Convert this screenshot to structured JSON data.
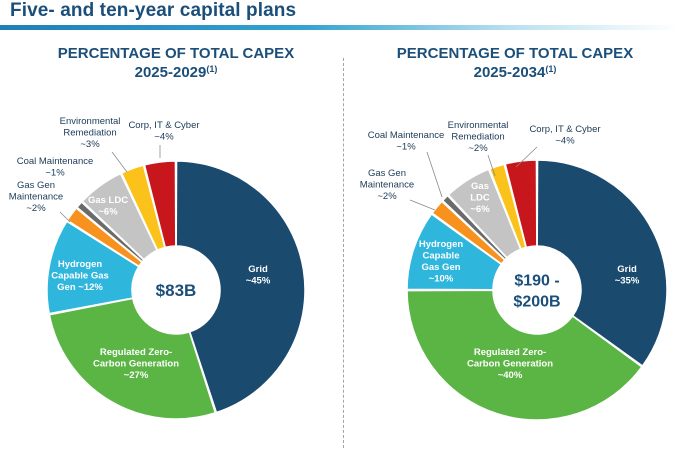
{
  "page": {
    "title": "Five- and ten-year capital plans"
  },
  "colors": {
    "grid": "#1a4a6e",
    "regulated": "#5bb544",
    "hydrogen": "#2fb6dd",
    "gas_gen": "#f7921e",
    "coal": "#6b6b6b",
    "gas_ldc": "#c4c4c4",
    "environmental": "#fbc21b",
    "corp": "#c8161d",
    "title_blue": "#1b4f7a"
  },
  "chart_data": [
    {
      "type": "pie",
      "title": "PERCENTAGE OF TOTAL CAPEX",
      "subtitle": "2025-2029",
      "footnote": "(1)",
      "center_label": [
        "$83B"
      ],
      "slices": [
        {
          "name": "Grid",
          "value_label": "~45%",
          "value": 45,
          "color": "#1a4a6e"
        },
        {
          "name": "Regulated Zero-Carbon Generation",
          "value_label": "~27%",
          "value": 27,
          "color": "#5bb544"
        },
        {
          "name": "Hydrogen Capable Gas Gen",
          "value_label": "~12%",
          "value": 12,
          "color": "#2fb6dd"
        },
        {
          "name": "Gas Gen Maintenance",
          "value_label": "~2%",
          "value": 2,
          "color": "#f7921e"
        },
        {
          "name": "Coal Maintenance",
          "value_label": "~1%",
          "value": 1,
          "color": "#6b6b6b"
        },
        {
          "name": "Gas LDC",
          "value_label": "~6%",
          "value": 6,
          "color": "#c4c4c4"
        },
        {
          "name": "Environmental Remediation",
          "value_label": "~3%",
          "value": 3,
          "color": "#fbc21b"
        },
        {
          "name": "Corp, IT & Cyber",
          "value_label": "~4%",
          "value": 4,
          "color": "#c8161d"
        }
      ],
      "labels": [
        {
          "lines": [
            "Grid",
            "~45%"
          ]
        },
        {
          "lines": [
            "Regulated Zero-",
            "Carbon Generation",
            "~27%"
          ]
        },
        {
          "lines": [
            "Hydrogen",
            "Capable Gas",
            "Gen ~12%"
          ]
        },
        {
          "lines": [
            "Gas Gen",
            "Maintenance",
            "~2%"
          ]
        },
        {
          "lines": [
            "Coal Maintenance",
            "~1%"
          ]
        },
        {
          "lines": [
            "Gas LDC",
            "~6%"
          ]
        },
        {
          "lines": [
            "Environmental",
            "Remediation",
            "~3%"
          ]
        },
        {
          "lines": [
            "Corp, IT & Cyber",
            "~4%"
          ]
        }
      ]
    },
    {
      "type": "pie",
      "title": "PERCENTAGE OF TOTAL CAPEX",
      "subtitle": "2025-2034",
      "footnote": "(1)",
      "center_label": [
        "$190 -",
        "$200B"
      ],
      "slices": [
        {
          "name": "Grid",
          "value_label": "~35%",
          "value": 35,
          "color": "#1a4a6e"
        },
        {
          "name": "Regulated Zero-Carbon Generation",
          "value_label": "~40%",
          "value": 40,
          "color": "#5bb544"
        },
        {
          "name": "Hydrogen Capable Gas Gen",
          "value_label": "~10%",
          "value": 10,
          "color": "#2fb6dd"
        },
        {
          "name": "Gas Gen Maintenance",
          "value_label": "~2%",
          "value": 2,
          "color": "#f7921e"
        },
        {
          "name": "Coal Maintenance",
          "value_label": "~1%",
          "value": 1,
          "color": "#6b6b6b"
        },
        {
          "name": "Gas LDC",
          "value_label": "~6%",
          "value": 6,
          "color": "#c4c4c4"
        },
        {
          "name": "Environmental Remediation",
          "value_label": "~2%",
          "value": 2,
          "color": "#fbc21b"
        },
        {
          "name": "Corp, IT & Cyber",
          "value_label": "~4%",
          "value": 4,
          "color": "#c8161d"
        }
      ],
      "labels": [
        {
          "lines": [
            "Grid",
            "~35%"
          ]
        },
        {
          "lines": [
            "Regulated Zero-",
            "Carbon Generation",
            "~40%"
          ]
        },
        {
          "lines": [
            "Hydrogen",
            "Capable",
            "Gas Gen",
            "~10%"
          ]
        },
        {
          "lines": [
            "Gas Gen",
            "Maintenance",
            "~2%"
          ]
        },
        {
          "lines": [
            "Coal Maintenance",
            "~1%"
          ]
        },
        {
          "lines": [
            "Gas",
            "LDC",
            "~6%"
          ]
        },
        {
          "lines": [
            "Environmental",
            "Remediation",
            "~2%"
          ]
        },
        {
          "lines": [
            "Corp, IT & Cyber",
            "~4%"
          ]
        }
      ]
    }
  ]
}
